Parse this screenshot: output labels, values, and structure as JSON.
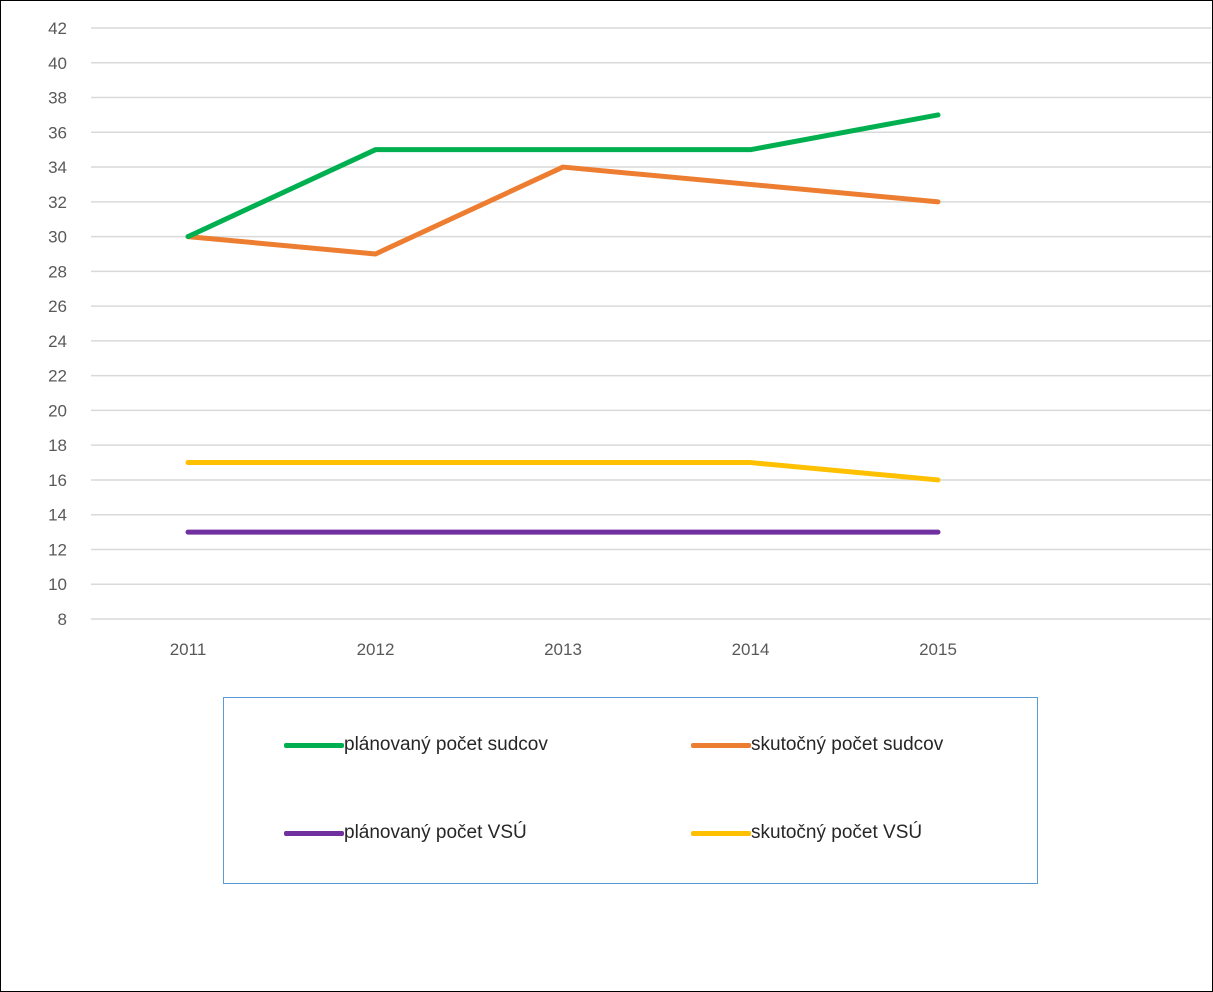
{
  "chart_data": {
    "type": "line",
    "title": "",
    "xlabel": "",
    "ylabel": "",
    "categories": [
      "2011",
      "2012",
      "2013",
      "2014",
      "2015"
    ],
    "ylim": [
      8,
      42
    ],
    "ytick_step": 2,
    "grid": true,
    "legend_position": "bottom",
    "series": [
      {
        "name": "plánovaný počet sudcov",
        "color": "#00b050",
        "values": [
          30,
          35,
          35,
          35,
          37
        ]
      },
      {
        "name": "skutočný počet sudcov",
        "color": "#ed7d31",
        "values": [
          30,
          29,
          34,
          33,
          32
        ]
      },
      {
        "name": "plánovaný počet VSÚ",
        "color": "#7030a0",
        "values": [
          13,
          13,
          13,
          13,
          13
        ]
      },
      {
        "name": "skutočný počet VSÚ",
        "color": "#ffc000",
        "values": [
          17,
          17,
          17,
          17,
          16
        ]
      }
    ]
  }
}
